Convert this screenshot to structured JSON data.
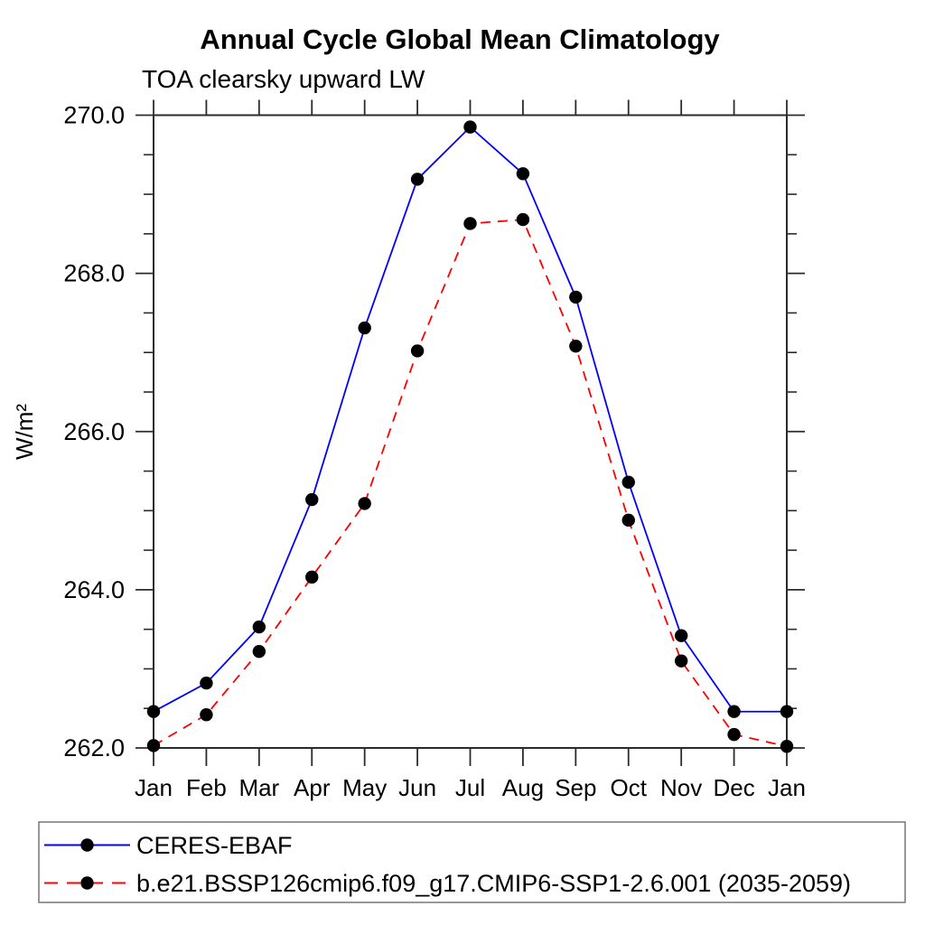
{
  "chart": {
    "title": "Annual Cycle Global Mean Climatology",
    "subtitle": "TOA clearsky upward LW",
    "ylabel": "W/m²"
  },
  "chart_data": {
    "type": "line",
    "title": "Annual Cycle Global Mean Climatology",
    "subtitle": "TOA clearsky upward LW",
    "xlabel": "",
    "ylabel": "W/m²",
    "categories": [
      "Jan",
      "Feb",
      "Mar",
      "Apr",
      "May",
      "Jun",
      "Jul",
      "Aug",
      "Sep",
      "Oct",
      "Nov",
      "Dec",
      "Jan"
    ],
    "ylim": [
      262.0,
      270.0
    ],
    "y_major_ticks": [
      262.0,
      264.0,
      266.0,
      268.0,
      270.0
    ],
    "y_tick_labels": [
      "262.0",
      "264.0",
      "266.0",
      "268.0",
      "270.0"
    ],
    "y_minor_step": 0.5,
    "grid": false,
    "legend_position": "bottom",
    "series": [
      {
        "name": "CERES-EBAF",
        "color": "#0000ff",
        "line_style": "solid",
        "marker": "black-circle",
        "values": [
          262.46,
          262.82,
          263.53,
          265.14,
          267.31,
          269.19,
          269.85,
          269.26,
          267.7,
          265.36,
          263.42,
          262.46,
          262.46
        ]
      },
      {
        "name": "b.e21.BSSP126cmip6.f09_g17.CMIP6-SSP1-2.6.001 (2035-2059)",
        "color": "#ff0000",
        "line_style": "dashed",
        "marker": "black-circle",
        "values": [
          262.03,
          262.42,
          263.22,
          264.16,
          265.09,
          267.02,
          268.63,
          268.68,
          267.08,
          264.88,
          263.1,
          262.17,
          262.02
        ]
      }
    ],
    "marker_color": "#000000",
    "axis_color": "#2b2b2b"
  }
}
